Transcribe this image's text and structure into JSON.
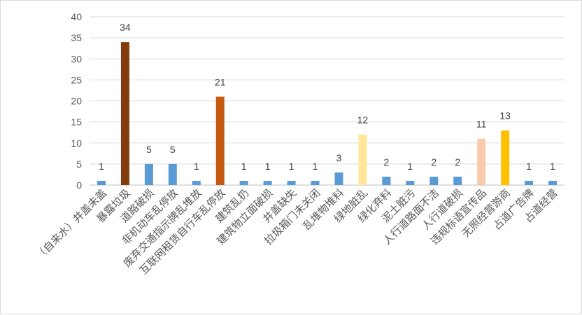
{
  "chart_data": {
    "type": "bar",
    "categories": [
      "（自来水）井盖未盖",
      "暴露垃圾",
      "道路破损",
      "非机动车乱停放",
      "废弃交通指示牌乱堆放",
      "互联网租赁自行车乱停放",
      "建筑乱扔",
      "建筑物立面破损",
      "井盖缺失",
      "拉圾箱门未关闭",
      "乱堆物堆料",
      "绿地脏乱",
      "绿化弃料",
      "泥土脏污",
      "人行道路面不洁",
      "人行道破损",
      "违规标语宣传品",
      "无照经营游商",
      "占道广告牌",
      "占道经营"
    ],
    "values": [
      1,
      34,
      5,
      5,
      1,
      21,
      1,
      1,
      1,
      1,
      3,
      12,
      2,
      1,
      2,
      2,
      11,
      13,
      1,
      1
    ],
    "colors": [
      "#5b9bd5",
      "#843c0c",
      "#5b9bd5",
      "#5b9bd5",
      "#5b9bd5",
      "#c55a11",
      "#5b9bd5",
      "#5b9bd5",
      "#5b9bd5",
      "#5b9bd5",
      "#5b9bd5",
      "#ffe699",
      "#5b9bd5",
      "#5b9bd5",
      "#5b9bd5",
      "#5b9bd5",
      "#f8cbad",
      "#ffc000",
      "#5b9bd5",
      "#5b9bd5"
    ],
    "yticks": [
      0,
      5,
      10,
      15,
      20,
      25,
      30,
      35,
      40
    ],
    "ylim": [
      0,
      40
    ],
    "grid": true,
    "legend": "none",
    "title": "",
    "xlabel": "",
    "ylabel": ""
  }
}
